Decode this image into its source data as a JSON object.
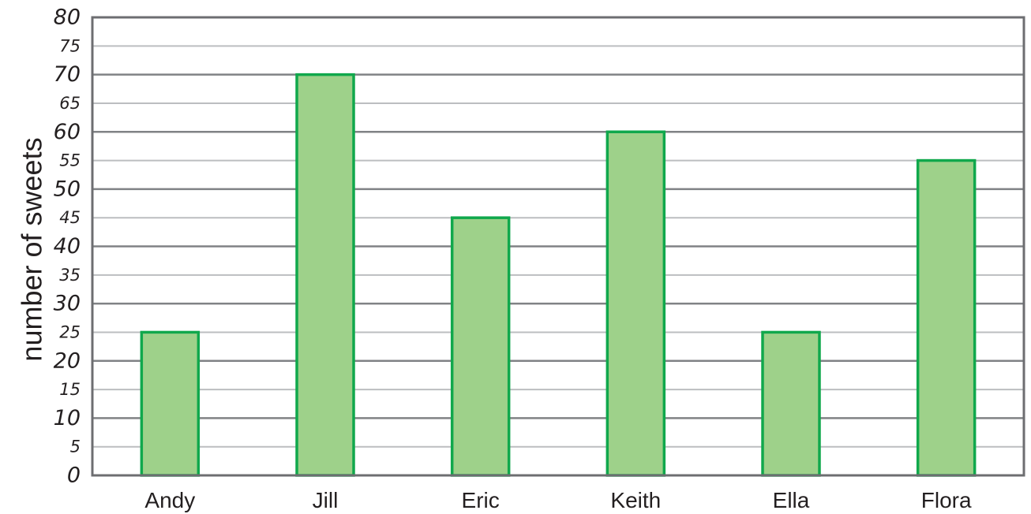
{
  "chart_data": {
    "type": "bar",
    "title": "",
    "xlabel": "",
    "ylabel": "number of sweets",
    "categories": [
      "Andy",
      "Jill",
      "Eric",
      "Keith",
      "Ella",
      "Flora"
    ],
    "values": [
      25,
      70,
      45,
      60,
      25,
      55
    ],
    "ylim": [
      0,
      80
    ],
    "y_ticks": [
      "0",
      "5",
      "10",
      "15",
      "20",
      "25",
      "30",
      "35",
      "40",
      "45",
      "50",
      "55",
      "60",
      "65",
      "70",
      "75",
      "80"
    ],
    "grid": true,
    "legend": "none",
    "colors": {
      "bar_fill": "#9ed18a",
      "bar_stroke": "#10a84c",
      "major_grid": "#808285",
      "minor_grid": "#bcbec0",
      "frame": "#6d6e71",
      "text": "#231f20"
    }
  }
}
